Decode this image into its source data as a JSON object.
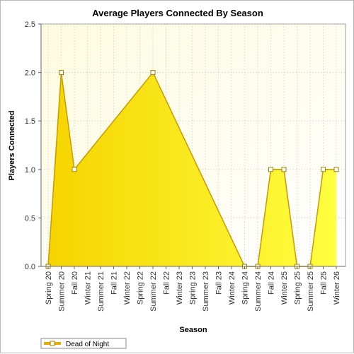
{
  "chart_data": {
    "type": "area",
    "title": "Average Players Connected By Season",
    "xlabel": "Season",
    "ylabel": "Players Connected",
    "ylim": [
      0,
      2.5
    ],
    "yticks": [
      "0.0",
      "0.5",
      "1.0",
      "1.5",
      "2.0",
      "2.5"
    ],
    "categories": [
      "Spring 20",
      "Summer 20",
      "Fall 20",
      "Winter 21",
      "Summer 21",
      "Fall 21",
      "Winter 22",
      "Spring 22",
      "Summer 22",
      "Fall 22",
      "Winter 23",
      "Spring 23",
      "Summer 23",
      "Fall 23",
      "Winter 24",
      "Spring 24",
      "Summer 24",
      "Fall 24",
      "Winter 25",
      "Spring 25",
      "Summer 25",
      "Fall 25",
      "Winter 26"
    ],
    "series": [
      {
        "name": "Dead of Night",
        "color": "#ffe600",
        "points": [
          {
            "x": "Spring 20",
            "y": 0
          },
          {
            "x": "Summer 20",
            "y": 2
          },
          {
            "x": "Fall 20",
            "y": 1
          },
          {
            "x": "Summer 22",
            "y": 2
          },
          {
            "x": "Spring 24",
            "y": 0
          },
          {
            "x": "Summer 24",
            "y": 0
          },
          {
            "x": "Fall 24",
            "y": 1
          },
          {
            "x": "Winter 25",
            "y": 1
          },
          {
            "x": "Spring 25",
            "y": 0
          },
          {
            "x": "Summer 25",
            "y": 0
          },
          {
            "x": "Fall 25",
            "y": 1
          },
          {
            "x": "Winter 26",
            "y": 1
          }
        ]
      }
    ],
    "grid": true,
    "legend": "bottom-left"
  }
}
